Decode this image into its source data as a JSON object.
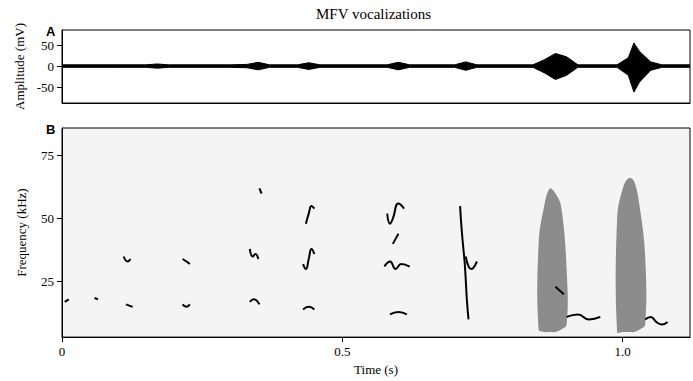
{
  "chart_data": [
    {
      "type": "area",
      "title": "MFV vocalizations",
      "annotations": [
        "A"
      ],
      "y_label": "Amplitude (mV)",
      "x": [
        0,
        0.05,
        0.1,
        0.15,
        0.17,
        0.19,
        0.3,
        0.33,
        0.35,
        0.37,
        0.42,
        0.44,
        0.46,
        0.58,
        0.6,
        0.62,
        0.7,
        0.72,
        0.74,
        0.84,
        0.86,
        0.88,
        0.9,
        0.92,
        0.99,
        1.01,
        1.02,
        1.03,
        1.05,
        1.07,
        1.12
      ],
      "series": [
        {
          "color": "#000000",
          "values": [
            3,
            3,
            3,
            3,
            5,
            3,
            3,
            4,
            9,
            3,
            3,
            8,
            3,
            3,
            9,
            3,
            3,
            10,
            3,
            3,
            15,
            30,
            22,
            3,
            3,
            20,
            55,
            35,
            10,
            3,
            3
          ]
        },
        {
          "color": "#000000",
          "values": [
            -3,
            -3,
            -3,
            -3,
            -5,
            -3,
            -3,
            -4,
            -9,
            -3,
            -3,
            -8,
            -3,
            -3,
            -9,
            -3,
            -3,
            -10,
            -3,
            -3,
            -16,
            -32,
            -22,
            -3,
            -3,
            -22,
            -62,
            -38,
            -10,
            -3,
            -3
          ]
        }
      ],
      "xlim": [
        0,
        1.12
      ],
      "ylim": [
        -88,
        86
      ],
      "yticks": [
        -50,
        0,
        50
      ],
      "tick_labels": "y",
      "grid": false
    },
    {
      "type": "line",
      "annotations": [
        "B"
      ],
      "x_label": "Time (s)",
      "y_label": "Frequency (kHz)",
      "xlim": [
        0,
        1.12
      ],
      "ylim": [
        3,
        86
      ],
      "xticks": [
        0,
        0.5,
        {
          "value": 1,
          "label": "1.0"
        }
      ],
      "yticks": [
        25,
        50,
        75
      ],
      "grid": false,
      "series": [
        {
          "color": "#000000",
          "x": [
            0.005,
            0.012
          ],
          "values": [
            17,
            18
          ]
        },
        {
          "color": "#000000",
          "x": [
            0.058,
            0.064
          ],
          "values": [
            18.5,
            18
          ]
        },
        {
          "color": "#000000",
          "x": [
            0.11,
            0.117,
            0.122
          ],
          "values": [
            35,
            33,
            34
          ]
        },
        {
          "color": "#000000",
          "x": [
            0.114,
            0.12,
            0.126
          ],
          "values": [
            16,
            15.5,
            15
          ]
        },
        {
          "color": "#000000",
          "x": [
            0.215,
            0.222,
            0.228
          ],
          "values": [
            34,
            33,
            32
          ]
        },
        {
          "color": "#000000",
          "x": [
            0.215,
            0.222,
            0.228
          ],
          "values": [
            16,
            15,
            16
          ]
        },
        {
          "color": "#000000",
          "x": [
            0.335,
            0.34,
            0.345,
            0.35
          ],
          "values": [
            38,
            35,
            36,
            34
          ]
        },
        {
          "color": "#000000",
          "x": [
            0.335,
            0.342,
            0.352
          ],
          "values": [
            17,
            18,
            16
          ]
        },
        {
          "color": "#000000",
          "x": [
            0.352,
            0.356
          ],
          "values": [
            62,
            60
          ]
        },
        {
          "color": "#000000",
          "x": [
            0.43,
            0.435,
            0.44,
            0.445,
            0.45
          ],
          "values": [
            32,
            30,
            34,
            38,
            36
          ]
        },
        {
          "color": "#000000",
          "x": [
            0.435,
            0.44,
            0.445,
            0.45
          ],
          "values": [
            48,
            52,
            55,
            54
          ]
        },
        {
          "color": "#000000",
          "x": [
            0.43,
            0.44,
            0.45
          ],
          "values": [
            14,
            15,
            14
          ]
        },
        {
          "color": "#000000",
          "x": [
            0.58,
            0.585,
            0.59,
            0.6,
            0.61
          ],
          "values": [
            52,
            48,
            50,
            56,
            54
          ]
        },
        {
          "color": "#000000",
          "x": [
            0.575,
            0.585,
            0.595,
            0.605,
            0.62
          ],
          "values": [
            31,
            33,
            30,
            32,
            31
          ]
        },
        {
          "color": "#000000",
          "x": [
            0.585,
            0.6,
            0.615
          ],
          "values": [
            12,
            13,
            12
          ]
        },
        {
          "color": "#000000",
          "x": [
            0.59,
            0.6
          ],
          "values": [
            40,
            44
          ]
        },
        {
          "color": "#000000",
          "x": [
            0.71,
            0.712,
            0.715,
            0.718,
            0.72,
            0.722,
            0.725
          ],
          "values": [
            55,
            48,
            40,
            33,
            26,
            18,
            10
          ]
        },
        {
          "color": "#000000",
          "x": [
            0.72,
            0.73,
            0.74
          ],
          "values": [
            35,
            30,
            33
          ]
        },
        {
          "color": "#000000",
          "x": [
            0.9,
            0.92,
            0.94,
            0.96
          ],
          "values": [
            11,
            12,
            10,
            11
          ]
        },
        {
          "color": "#000000",
          "x": [
            1.04,
            1.05,
            1.06,
            1.07,
            1.08
          ],
          "values": [
            10,
            11,
            9,
            8,
            9
          ]
        },
        {
          "color": "#000000",
          "x": [
            0.88,
            0.895
          ],
          "values": [
            23,
            20
          ]
        },
        {
          "type": "band",
          "color": "#555555",
          "x": [
            0.85,
            0.86,
            0.87,
            0.88,
            0.89,
            0.9
          ],
          "low": [
            6,
            5,
            5,
            5,
            6,
            8
          ],
          "high": [
            40,
            55,
            62,
            60,
            55,
            30
          ]
        },
        {
          "type": "band",
          "color": "#555555",
          "x": [
            0.99,
            1.0,
            1.01,
            1.02,
            1.03,
            1.04
          ],
          "low": [
            5,
            5,
            5,
            5,
            6,
            8
          ],
          "high": [
            50,
            62,
            66,
            65,
            55,
            35
          ]
        }
      ]
    }
  ]
}
